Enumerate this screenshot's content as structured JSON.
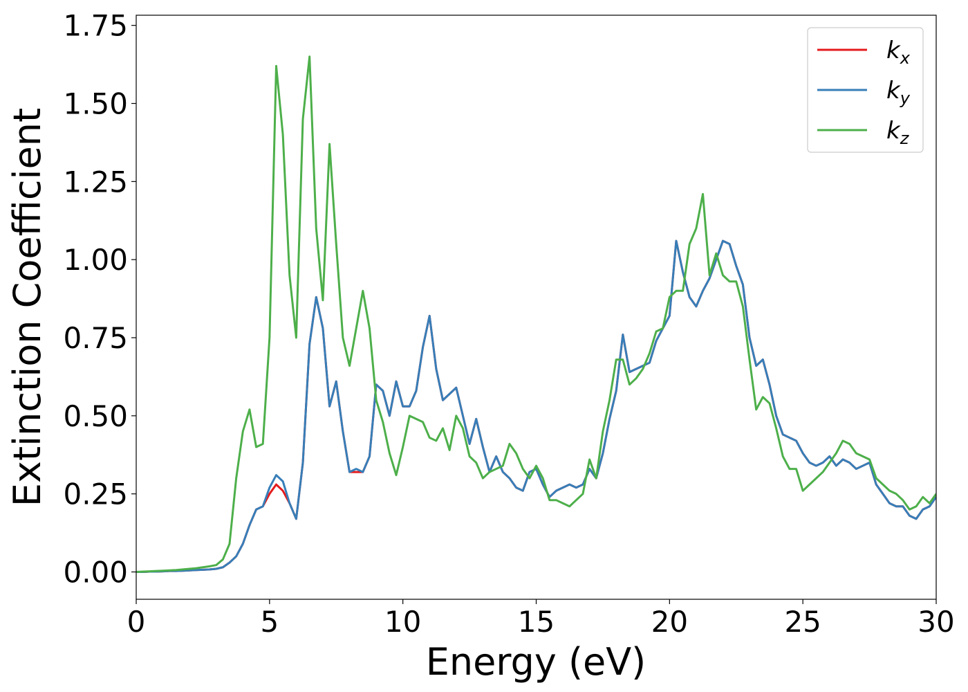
{
  "chart_data": {
    "type": "line",
    "xlabel": "Energy (eV)",
    "ylabel": "Extinction Coefficient",
    "x": [
      0,
      0.25,
      0.5,
      0.75,
      1,
      1.25,
      1.5,
      1.75,
      2,
      2.25,
      2.5,
      2.75,
      3,
      3.25,
      3.5,
      3.75,
      4,
      4.25,
      4.5,
      4.75,
      5,
      5.25,
      5.5,
      5.75,
      6,
      6.25,
      6.5,
      6.75,
      7,
      7.25,
      7.5,
      7.75,
      8,
      8.25,
      8.5,
      8.75,
      9,
      9.25,
      9.5,
      9.75,
      10,
      10.25,
      10.5,
      10.75,
      11,
      11.25,
      11.5,
      11.75,
      12,
      12.25,
      12.5,
      12.75,
      13,
      13.25,
      13.5,
      13.75,
      14,
      14.25,
      14.5,
      14.75,
      15,
      15.25,
      15.5,
      15.75,
      16,
      16.25,
      16.5,
      16.75,
      17,
      17.25,
      17.5,
      17.75,
      18,
      18.25,
      18.5,
      18.75,
      19,
      19.25,
      19.5,
      19.75,
      20,
      20.25,
      20.5,
      20.75,
      21,
      21.25,
      21.5,
      21.75,
      22,
      22.25,
      22.5,
      22.75,
      23,
      23.25,
      23.5,
      23.75,
      24,
      24.25,
      24.5,
      24.75,
      25,
      25.25,
      25.5,
      25.75,
      26,
      26.25,
      26.5,
      26.75,
      27,
      27.25,
      27.5,
      27.75,
      28,
      28.25,
      28.5,
      28.75,
      29,
      29.25,
      29.5,
      29.75,
      30
    ],
    "series": [
      {
        "name": "kx",
        "color": "#e41a1c",
        "values": [
          0,
          0,
          0.001,
          0.001,
          0.002,
          0.003,
          0.003,
          0.004,
          0.005,
          0.006,
          0.007,
          0.008,
          0.01,
          0.015,
          0.03,
          0.05,
          0.09,
          0.15,
          0.2,
          0.21,
          0.25,
          0.28,
          0.26,
          0.22,
          0.17,
          0.35,
          0.73,
          0.88,
          0.78,
          0.53,
          0.61,
          0.45,
          0.32,
          0.32,
          0.32,
          0.37,
          0.6,
          0.58,
          0.5,
          0.61,
          0.53,
          0.53,
          0.58,
          0.72,
          0.82,
          0.65,
          0.55,
          0.57,
          0.59,
          0.5,
          0.41,
          0.49,
          0.4,
          0.32,
          0.37,
          0.32,
          0.3,
          0.27,
          0.26,
          0.32,
          0.33,
          0.28,
          0.24,
          0.26,
          0.27,
          0.28,
          0.27,
          0.28,
          0.33,
          0.3,
          0.38,
          0.49,
          0.58,
          0.76,
          0.64,
          0.65,
          0.66,
          0.67,
          0.74,
          0.78,
          0.82,
          1.06,
          0.96,
          0.88,
          0.85,
          0.9,
          0.94,
          1.0,
          1.06,
          1.05,
          0.98,
          0.92,
          0.75,
          0.66,
          0.68,
          0.6,
          0.5,
          0.44,
          0.43,
          0.42,
          0.38,
          0.35,
          0.34,
          0.35,
          0.37,
          0.34,
          0.36,
          0.35,
          0.33,
          0.34,
          0.35,
          0.28,
          0.25,
          0.22,
          0.21,
          0.21,
          0.18,
          0.17,
          0.2,
          0.21,
          0.24
        ]
      },
      {
        "name": "ky",
        "color": "#377eb8",
        "values": [
          0,
          0,
          0.001,
          0.001,
          0.002,
          0.003,
          0.003,
          0.004,
          0.005,
          0.006,
          0.007,
          0.008,
          0.01,
          0.015,
          0.03,
          0.05,
          0.09,
          0.15,
          0.2,
          0.21,
          0.27,
          0.31,
          0.29,
          0.22,
          0.17,
          0.35,
          0.73,
          0.88,
          0.78,
          0.53,
          0.61,
          0.45,
          0.32,
          0.33,
          0.32,
          0.37,
          0.6,
          0.58,
          0.5,
          0.61,
          0.53,
          0.53,
          0.58,
          0.72,
          0.82,
          0.65,
          0.55,
          0.57,
          0.59,
          0.5,
          0.41,
          0.49,
          0.4,
          0.32,
          0.37,
          0.32,
          0.3,
          0.27,
          0.26,
          0.32,
          0.33,
          0.28,
          0.24,
          0.26,
          0.27,
          0.28,
          0.27,
          0.28,
          0.33,
          0.3,
          0.38,
          0.49,
          0.58,
          0.76,
          0.64,
          0.65,
          0.66,
          0.67,
          0.74,
          0.78,
          0.82,
          1.06,
          0.96,
          0.88,
          0.85,
          0.9,
          0.94,
          1.0,
          1.06,
          1.05,
          0.98,
          0.92,
          0.75,
          0.66,
          0.68,
          0.6,
          0.5,
          0.44,
          0.43,
          0.42,
          0.38,
          0.35,
          0.34,
          0.35,
          0.37,
          0.34,
          0.36,
          0.35,
          0.33,
          0.34,
          0.35,
          0.28,
          0.25,
          0.22,
          0.21,
          0.21,
          0.18,
          0.17,
          0.2,
          0.21,
          0.24
        ]
      },
      {
        "name": "kz",
        "color": "#4daf4a",
        "values": [
          0,
          0.001,
          0.002,
          0.003,
          0.004,
          0.005,
          0.006,
          0.008,
          0.01,
          0.012,
          0.015,
          0.018,
          0.022,
          0.04,
          0.09,
          0.3,
          0.45,
          0.52,
          0.4,
          0.41,
          0.75,
          1.62,
          1.4,
          0.95,
          0.75,
          1.45,
          1.65,
          1.1,
          0.87,
          1.37,
          1.05,
          0.75,
          0.66,
          0.78,
          0.9,
          0.78,
          0.55,
          0.48,
          0.38,
          0.31,
          0.4,
          0.5,
          0.49,
          0.48,
          0.43,
          0.42,
          0.46,
          0.39,
          0.5,
          0.46,
          0.37,
          0.35,
          0.3,
          0.32,
          0.33,
          0.34,
          0.41,
          0.38,
          0.33,
          0.3,
          0.34,
          0.3,
          0.23,
          0.23,
          0.22,
          0.21,
          0.23,
          0.25,
          0.36,
          0.3,
          0.45,
          0.55,
          0.68,
          0.68,
          0.6,
          0.62,
          0.65,
          0.7,
          0.77,
          0.78,
          0.88,
          0.9,
          0.9,
          1.05,
          1.1,
          1.21,
          0.95,
          1.02,
          0.95,
          0.93,
          0.93,
          0.85,
          0.68,
          0.52,
          0.56,
          0.54,
          0.46,
          0.37,
          0.33,
          0.33,
          0.26,
          0.28,
          0.3,
          0.32,
          0.35,
          0.38,
          0.42,
          0.41,
          0.38,
          0.37,
          0.36,
          0.3,
          0.28,
          0.26,
          0.25,
          0.23,
          0.2,
          0.21,
          0.24,
          0.22,
          0.25
        ]
      }
    ],
    "xlim": [
      0,
      30
    ],
    "xticks": [
      0,
      5,
      10,
      15,
      20,
      25,
      30
    ],
    "ylim": [
      -0.0875,
      1.7825
    ],
    "yticks": [
      {
        "value": 0,
        "label": "0.00"
      },
      {
        "value": 0.25,
        "label": "0.25"
      },
      {
        "value": 0.5,
        "label": "0.50"
      },
      {
        "value": 0.75,
        "label": "0.75"
      },
      {
        "value": 1,
        "label": "1.00"
      },
      {
        "value": 1.25,
        "label": "1.25"
      },
      {
        "value": 1.5,
        "label": "1.50"
      },
      {
        "value": 1.75,
        "label": "1.75"
      }
    ],
    "grid": false,
    "legend": "upper right"
  }
}
